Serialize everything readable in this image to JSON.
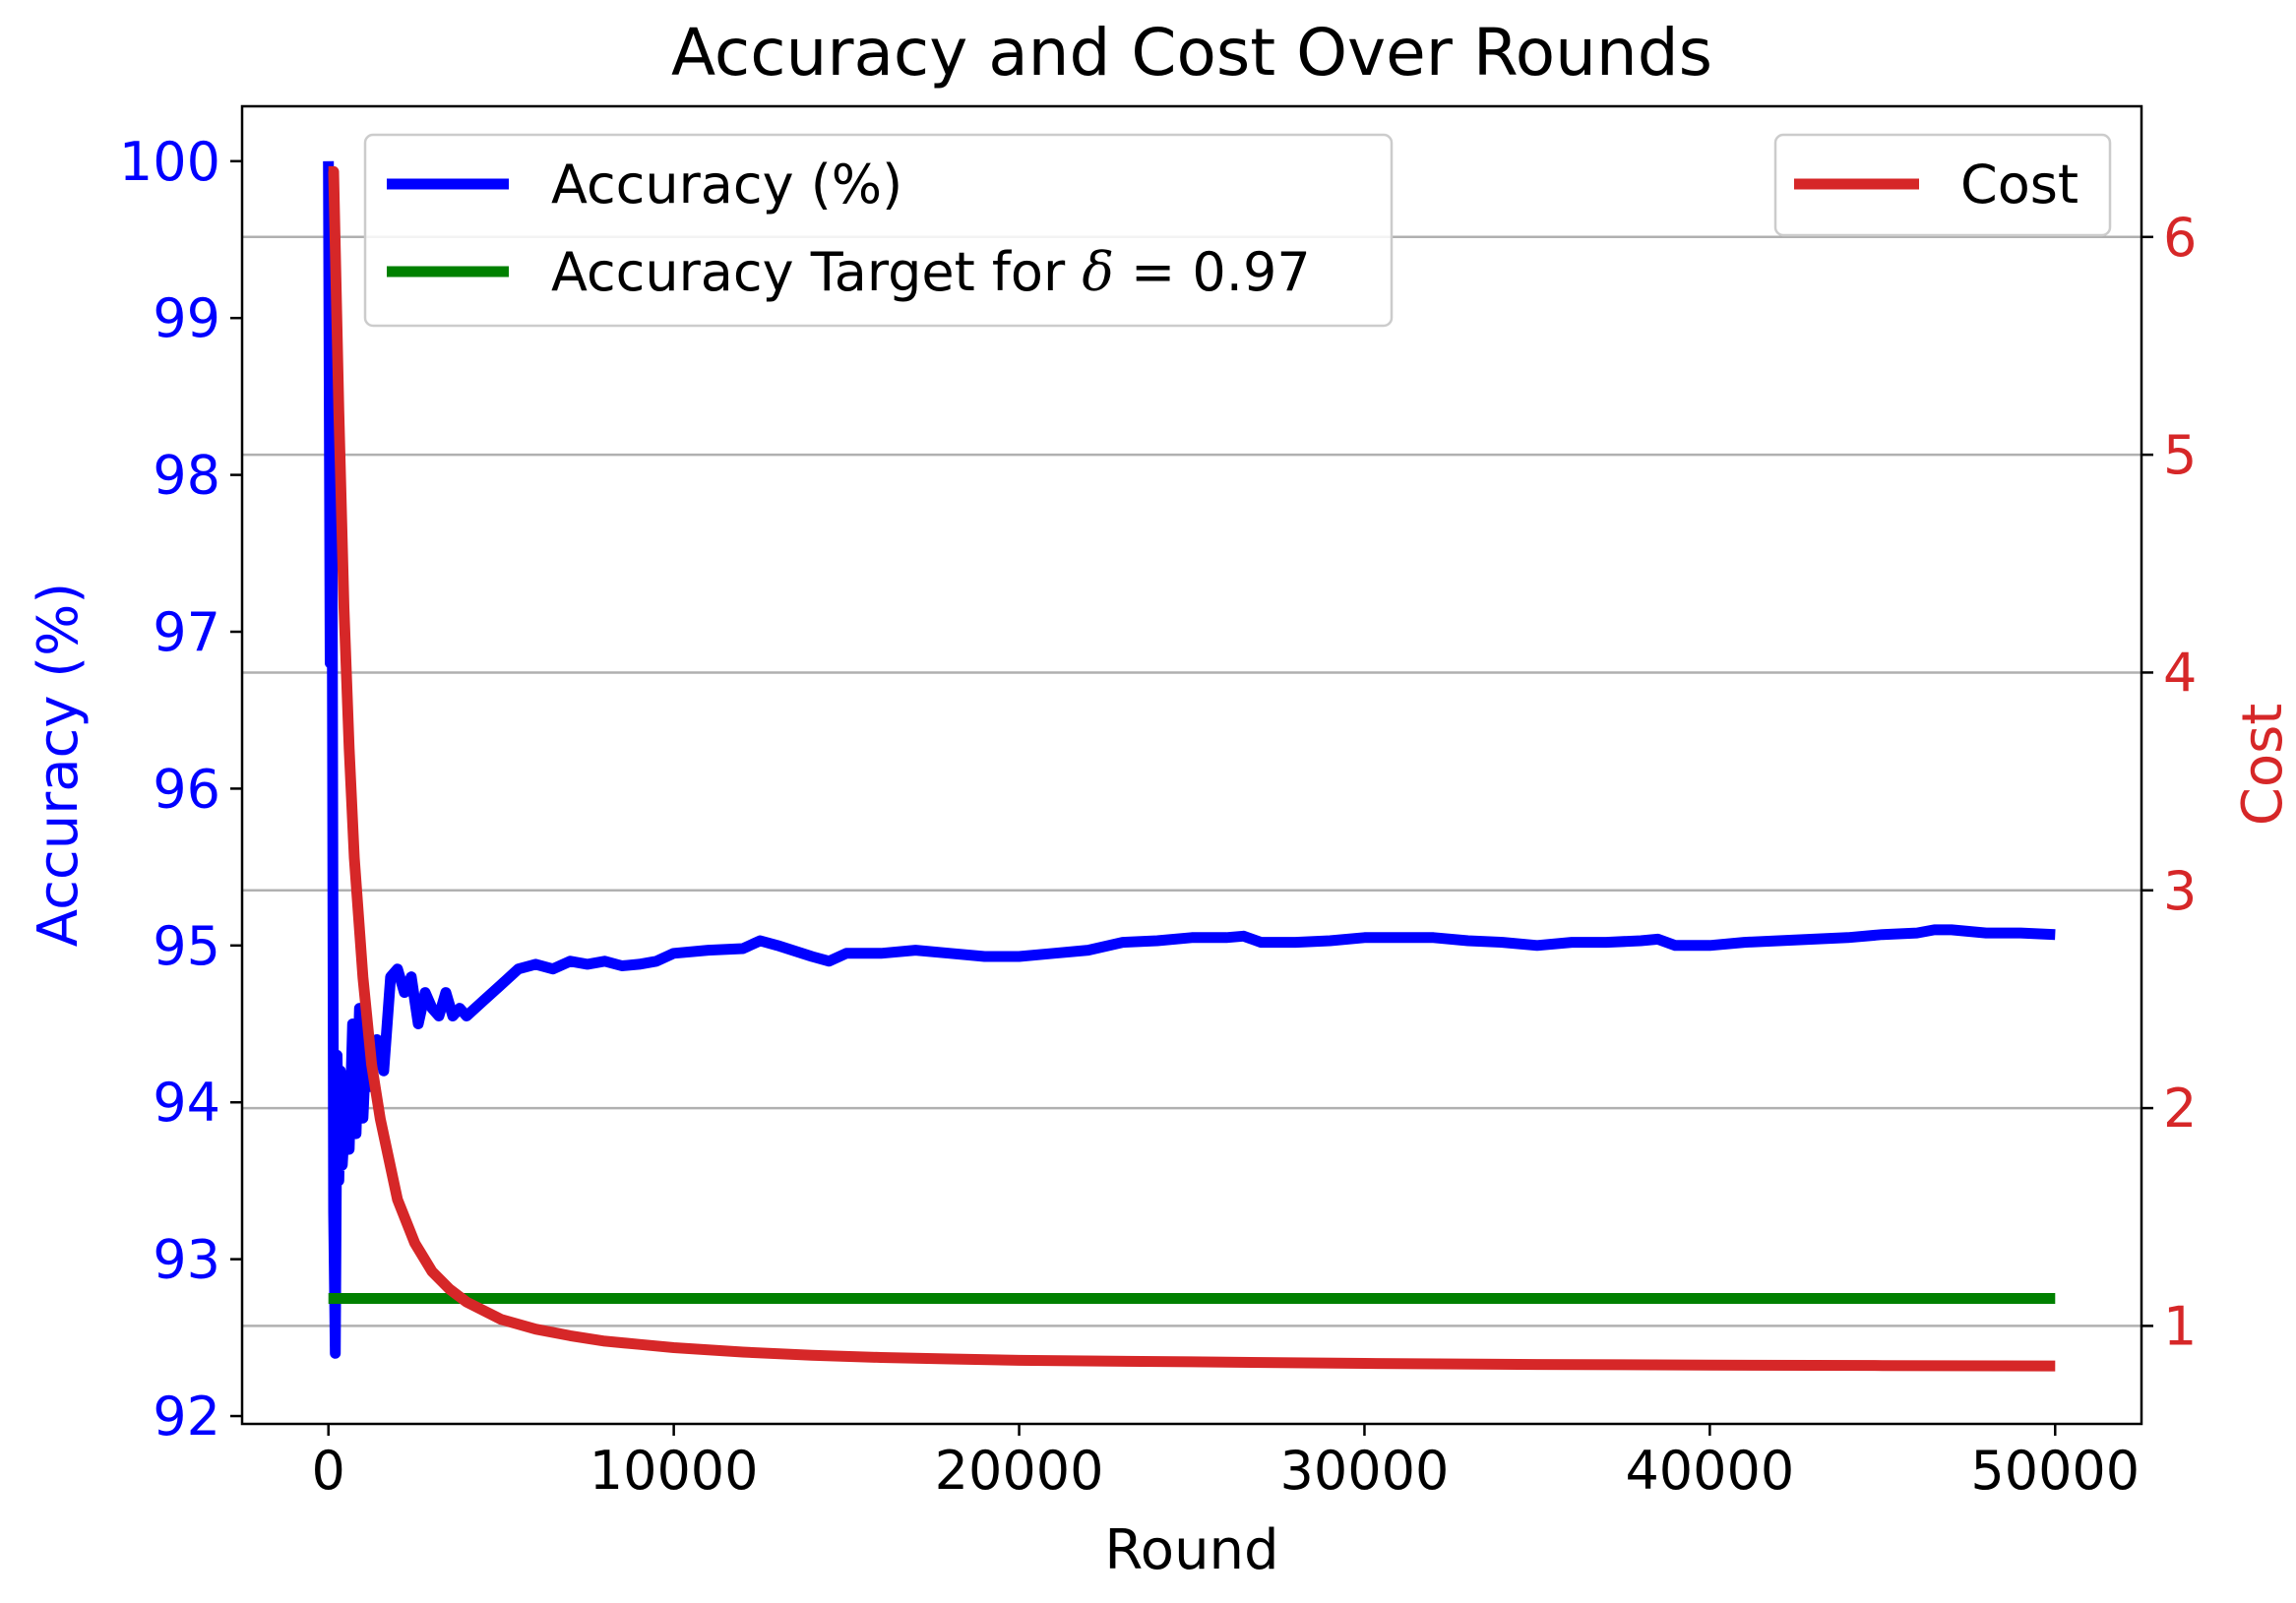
{
  "chart_data": {
    "type": "line",
    "title": "Accuracy and Cost Over Rounds",
    "xlabel": "Round",
    "ylabel_left": "Accuracy (%)",
    "ylabel_right": "Cost",
    "xlim": [
      -2500,
      52500
    ],
    "ylim_left": [
      91.95,
      100.35
    ],
    "ylim_right": [
      0.55,
      6.6
    ],
    "x_ticks": [
      0,
      10000,
      20000,
      30000,
      40000,
      50000
    ],
    "y_left_ticks": [
      92,
      93,
      94,
      95,
      96,
      97,
      98,
      99,
      100
    ],
    "y_right_ticks": [
      1,
      2,
      3,
      4,
      5,
      6
    ],
    "grid": "horizontal, right axis ticks",
    "legend_left": {
      "placement": "upper-left",
      "entries": [
        {
          "label": "Accuracy (%)",
          "color": "#0000ff"
        },
        {
          "label_prefix": "Accuracy Target for ",
          "label_symbol": "δ",
          "label_suffix": " = 0.97",
          "color": "#008000"
        }
      ]
    },
    "legend_right": {
      "placement": "upper-right",
      "entries": [
        {
          "label": "Cost",
          "color": "#d62728"
        }
      ]
    },
    "series": [
      {
        "name": "Accuracy (%)",
        "axis": "left",
        "color": "#0000ff",
        "x": [
          0,
          50,
          100,
          150,
          200,
          250,
          300,
          350,
          400,
          500,
          600,
          700,
          800,
          900,
          1000,
          1100,
          1200,
          1400,
          1600,
          1800,
          2000,
          2200,
          2400,
          2600,
          2800,
          3000,
          3200,
          3400,
          3600,
          3800,
          4000,
          4500,
          5000,
          5500,
          6000,
          6500,
          7000,
          7500,
          8000,
          8500,
          9000,
          9500,
          10000,
          11000,
          12000,
          12500,
          13000,
          14000,
          14500,
          15000,
          16000,
          17000,
          18000,
          19000,
          20000,
          21000,
          22000,
          23000,
          24000,
          25000,
          26000,
          26500,
          27000,
          28000,
          29000,
          30000,
          31000,
          32000,
          33000,
          34000,
          35000,
          36000,
          37000,
          38000,
          38500,
          39000,
          40000,
          41000,
          42000,
          43000,
          44000,
          45000,
          46000,
          46500,
          47000,
          48000,
          49000,
          50000
        ],
        "y": [
          100.0,
          96.8,
          98.3,
          93.3,
          92.4,
          94.3,
          93.5,
          94.2,
          93.6,
          94.0,
          93.7,
          94.5,
          93.8,
          94.6,
          93.9,
          94.4,
          94.1,
          94.4,
          94.2,
          94.8,
          94.85,
          94.7,
          94.8,
          94.5,
          94.7,
          94.6,
          94.55,
          94.7,
          94.55,
          94.6,
          94.55,
          94.65,
          94.75,
          94.85,
          94.88,
          94.85,
          94.9,
          94.88,
          94.9,
          94.87,
          94.88,
          94.9,
          94.95,
          94.97,
          94.98,
          95.03,
          95.0,
          94.93,
          94.9,
          94.95,
          94.95,
          94.97,
          94.95,
          94.93,
          94.93,
          94.95,
          94.97,
          95.02,
          95.03,
          95.05,
          95.05,
          95.06,
          95.02,
          95.02,
          95.03,
          95.05,
          95.05,
          95.05,
          95.03,
          95.02,
          95.0,
          95.02,
          95.02,
          95.03,
          95.04,
          95.0,
          95.0,
          95.02,
          95.03,
          95.04,
          95.05,
          95.07,
          95.08,
          95.1,
          95.1,
          95.08,
          95.08,
          95.07
        ]
      },
      {
        "name": "Accuracy Target for δ = 0.97",
        "axis": "left",
        "color": "#008000",
        "x": [
          0,
          50000
        ],
        "y": [
          92.75,
          92.75
        ]
      },
      {
        "name": "Cost",
        "axis": "right",
        "color": "#d62728",
        "x": [
          0,
          150,
          300,
          450,
          600,
          750,
          1000,
          1250,
          1500,
          2000,
          2500,
          3000,
          3500,
          4000,
          5000,
          6000,
          7000,
          8000,
          9000,
          10000,
          12000,
          14000,
          16000,
          18000,
          20000,
          25000,
          30000,
          35000,
          40000,
          45000,
          50000
        ],
        "y": [
          6.3,
          6.3,
          5.2,
          4.3,
          3.65,
          3.15,
          2.6,
          2.2,
          1.95,
          1.58,
          1.38,
          1.25,
          1.17,
          1.11,
          1.03,
          0.985,
          0.955,
          0.93,
          0.915,
          0.9,
          0.88,
          0.865,
          0.855,
          0.848,
          0.842,
          0.835,
          0.828,
          0.823,
          0.82,
          0.818,
          0.816
        ]
      }
    ]
  }
}
